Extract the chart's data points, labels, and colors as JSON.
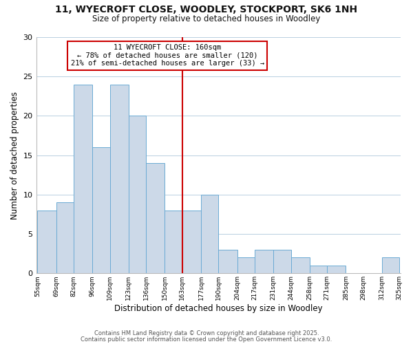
{
  "title_line1": "11, WYECROFT CLOSE, WOODLEY, STOCKPORT, SK6 1NH",
  "title_line2": "Size of property relative to detached houses in Woodley",
  "xlabel": "Distribution of detached houses by size in Woodley",
  "ylabel": "Number of detached properties",
  "bar_edges": [
    55,
    69,
    82,
    96,
    109,
    123,
    136,
    150,
    163,
    177,
    190,
    204,
    217,
    231,
    244,
    258,
    271,
    285,
    298,
    312,
    325
  ],
  "bar_heights": [
    8,
    9,
    24,
    16,
    24,
    20,
    14,
    8,
    8,
    10,
    3,
    2,
    3,
    3,
    2,
    1,
    1,
    0,
    0,
    2,
    0
  ],
  "bar_color": "#ccd9e8",
  "bar_edgecolor": "#6aaad4",
  "property_line_x": 163,
  "property_line_color": "#cc0000",
  "ylim": [
    0,
    30
  ],
  "yticks": [
    0,
    5,
    10,
    15,
    20,
    25,
    30
  ],
  "annotation_title": "11 WYECROFT CLOSE: 160sqm",
  "annotation_line2": "← 78% of detached houses are smaller (120)",
  "annotation_line3": "21% of semi-detached houses are larger (33) →",
  "tick_labels": [
    "55sqm",
    "69sqm",
    "82sqm",
    "96sqm",
    "109sqm",
    "123sqm",
    "136sqm",
    "150sqm",
    "163sqm",
    "177sqm",
    "190sqm",
    "204sqm",
    "217sqm",
    "231sqm",
    "244sqm",
    "258sqm",
    "271sqm",
    "285sqm",
    "298sqm",
    "312sqm",
    "325sqm"
  ],
  "footnote1": "Contains HM Land Registry data © Crown copyright and database right 2025.",
  "footnote2": "Contains public sector information licensed under the Open Government Licence v3.0.",
  "bg_color": "#ffffff",
  "grid_color": "#b8cfe0"
}
